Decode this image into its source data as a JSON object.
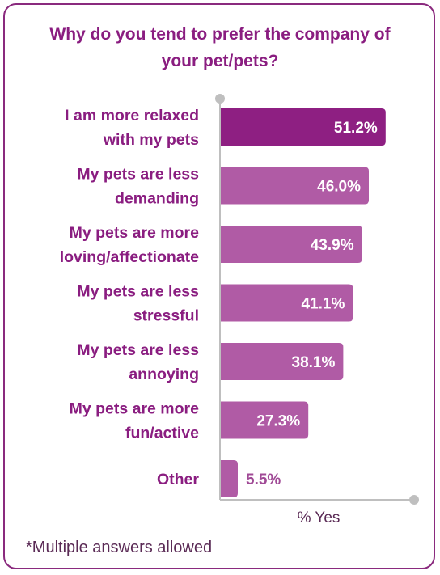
{
  "chart_data": {
    "type": "bar",
    "orientation": "horizontal",
    "title": "Why do you tend to prefer the company of your pet/pets?",
    "title_lines": [
      "Why do you tend to prefer the company of",
      "your pet/pets?"
    ],
    "categories": [
      [
        "I am more relaxed",
        "with my pets"
      ],
      [
        "My pets are less",
        "demanding"
      ],
      [
        "My pets are more",
        "loving/affectionate"
      ],
      [
        "My pets are less",
        "stressful"
      ],
      [
        "My pets are less",
        "annoying"
      ],
      [
        "My pets are more",
        "fun/active"
      ],
      [
        "Other"
      ]
    ],
    "values": [
      51.2,
      46.0,
      43.9,
      41.1,
      38.1,
      27.3,
      5.5
    ],
    "value_labels": [
      "51.2%",
      "46.0%",
      "43.9%",
      "41.1%",
      "38.1%",
      "27.3%",
      "5.5%"
    ],
    "xlabel": "% Yes",
    "ylabel": "",
    "xlim": [
      0,
      60
    ],
    "grid": false,
    "colors": {
      "highlight_bar": "#8e1f82",
      "bar": "#b05ba5",
      "axis": "#bfbfbf",
      "label": "#8a1d80",
      "border": "#8a2a7e",
      "value_inside": "#ffffff",
      "value_outside": "#a04a96"
    }
  },
  "footnote": "*Multiple answers allowed"
}
